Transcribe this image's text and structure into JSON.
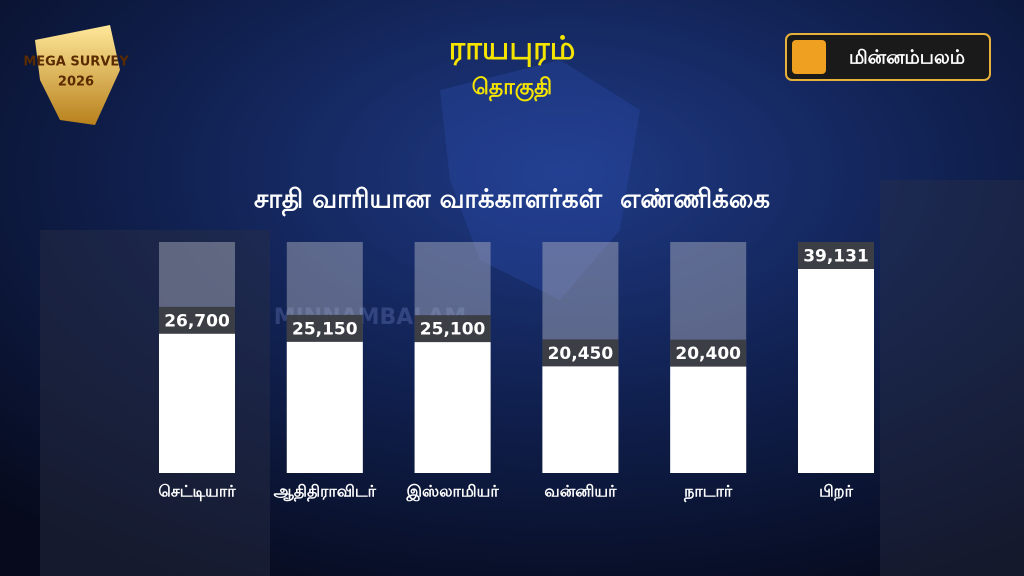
{
  "header": {
    "title": "ராயபுரம்",
    "subtitle": "தொகுதி"
  },
  "logo": {
    "badge": "MEGA SURVEY",
    "year": "2026",
    "brand": "மின்னம்பலம்",
    "watermark": "MINNAMBALAM"
  },
  "chart_data": {
    "type": "bar",
    "title": "சாதி வாரியான வாக்காளர்கள்  எண்ணிக்கை",
    "categories": [
      "செட்டியார்",
      "ஆதிதிராவிடர்",
      "இஸ்லாமியர்",
      "வன்னியர்",
      "நாடார்",
      "பிறர்"
    ],
    "values": [
      26700,
      25150,
      25100,
      20450,
      20400,
      39131
    ],
    "value_labels": [
      "26,700",
      "25,150",
      "25,100",
      "20,450",
      "20,400",
      "39,131"
    ],
    "color": "#ffffff"
  }
}
